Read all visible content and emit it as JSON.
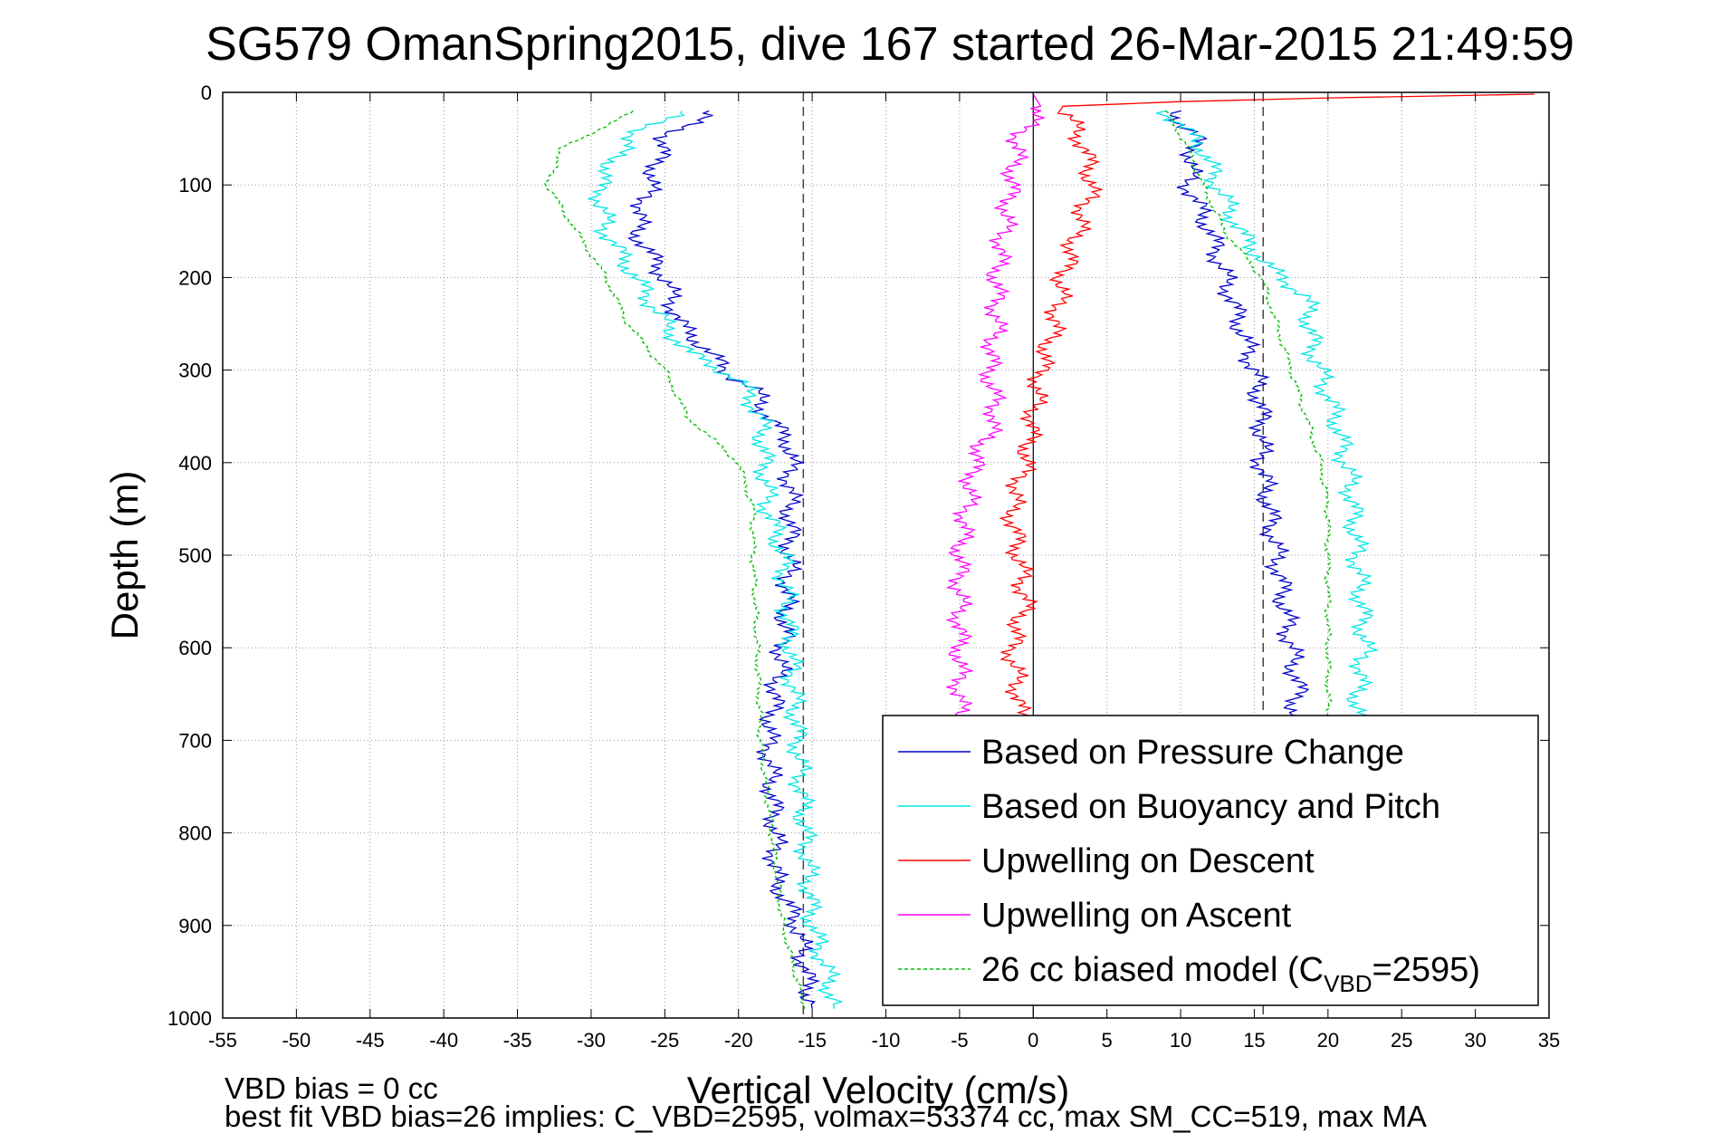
{
  "chart_data": {
    "type": "line",
    "title": "SG579 OmanSpring2015, dive 167 started 26-Mar-2015 21:49:59",
    "xlabel": "Vertical Velocity (cm/s)",
    "ylabel": "Depth (m)",
    "xlim": [
      -55,
      35
    ],
    "ylim": [
      0,
      1000
    ],
    "y_reversed": true,
    "grid": true,
    "x_ticks": [
      -55,
      -50,
      -45,
      -40,
      -35,
      -30,
      -25,
      -20,
      -15,
      -10,
      -5,
      0,
      5,
      10,
      15,
      20,
      25,
      30,
      35
    ],
    "y_ticks": [
      0,
      100,
      200,
      300,
      400,
      500,
      600,
      700,
      800,
      900,
      1000
    ],
    "x_tick_labels": [
      "-55",
      "-50",
      "-45",
      "-40",
      "-35",
      "-30",
      "-25",
      "-20",
      "-15",
      "-10",
      "-5",
      "0",
      "5",
      "10",
      "15",
      "20",
      "25",
      "30",
      "35"
    ],
    "y_tick_labels": [
      "0",
      "100",
      "200",
      "300",
      "400",
      "500",
      "600",
      "700",
      "800",
      "900",
      "1000"
    ],
    "reference_lines": {
      "vertical_dashed_x": [
        -15.6,
        15.6
      ],
      "vertical_solid_x": [
        0
      ]
    },
    "legend_placement": "bottom-right",
    "series": [
      {
        "name": "Based on Pressure Change",
        "color": "#0000cc",
        "style": "solid",
        "segments": [
          {
            "x": [
              -22,
              -25,
              -26,
              -27,
              -25,
              -24,
              -22,
              -21,
              -19,
              -18,
              -16.5,
              -16.5,
              -16.5,
              -17,
              -18,
              -17.5,
              -17.5,
              -16,
              -15
            ],
            "y": [
              20,
              50,
              100,
              150,
              200,
              250,
              280,
              300,
              320,
              350,
              380,
              450,
              500,
              600,
              700,
              800,
              850,
              900,
              990
            ]
          },
          {
            "x": [
              9.5,
              11,
              10.5,
              12,
              13,
              14,
              15,
              15.5,
              15.5,
              16,
              16.5,
              17,
              17.5,
              18,
              17.5
            ],
            "y": [
              20,
              50,
              100,
              150,
              200,
              250,
              300,
              350,
              400,
              450,
              500,
              550,
              600,
              650,
              680
            ]
          }
        ]
      },
      {
        "name": "Based on Buoyancy and Pitch",
        "color": "#00e5e5",
        "style": "solid",
        "segments": [
          {
            "x": [
              -24,
              -27.5,
              -29.5,
              -29,
              -27,
              -25,
              -23.5,
              -20,
              -18.5,
              -18,
              -17,
              -16.5,
              -16,
              -15.5,
              -15,
              -14,
              -13.5
            ],
            "y": [
              20,
              50,
              100,
              150,
              200,
              250,
              280,
              310,
              350,
              450,
              500,
              600,
              700,
              800,
              900,
              950,
              990
            ]
          },
          {
            "x": [
              9,
              11.5,
              12.5,
              14,
              16,
              18.5,
              19,
              20.5,
              21.5,
              22,
              22.5,
              22,
              22
            ],
            "y": [
              20,
              60,
              100,
              150,
              190,
              220,
              280,
              350,
              420,
              500,
              600,
              650,
              680
            ]
          }
        ]
      },
      {
        "name": "Upwelling on Descent",
        "color": "#ff0000",
        "style": "solid",
        "segments": [
          {
            "x": [
              34,
              20,
              10,
              2,
              2.5,
              3.5,
              4,
              3,
              2,
              1.5,
              0.5,
              0,
              -0.5,
              -1.5,
              -1,
              -0.5,
              -1.5,
              -1,
              -1
            ],
            "y": [
              2,
              6,
              10,
              15,
              30,
              60,
              100,
              150,
              200,
              250,
              300,
              350,
              400,
              450,
              500,
              550,
              600,
              650,
              680
            ]
          }
        ]
      },
      {
        "name": "Upwelling on Ascent",
        "color": "#ff00ff",
        "style": "solid",
        "segments": [
          {
            "x": [
              0,
              0.5,
              -1,
              -1.5,
              -2,
              -2.5,
              -2.5,
              -3,
              -2.5,
              -4,
              -4.5,
              -5,
              -5,
              -5,
              -5,
              -5
            ],
            "y": [
              2,
              15,
              50,
              100,
              150,
              200,
              250,
              300,
              350,
              400,
              450,
              500,
              550,
              600,
              650,
              680
            ]
          }
        ]
      },
      {
        "name": "26 cc biased model (C<sub>VBD</sub>=2595)",
        "color": "#00bb00",
        "style": "dashed",
        "segments": [
          {
            "x": [
              -27,
              -32,
              -33,
              -31,
              -29,
              -27.5,
              -25,
              -23.5,
              -20,
              -19,
              -19,
              -18.5,
              -17,
              -15.5
            ],
            "y": [
              20,
              60,
              100,
              150,
              200,
              250,
              300,
              350,
              400,
              450,
              500,
              700,
              900,
              990
            ]
          },
          {
            "x": [
              9,
              10.5,
              11.5,
              13,
              15.5,
              16.5,
              17.5,
              18.5,
              19.5,
              20,
              20,
              20,
              20
            ],
            "y": [
              20,
              60,
              100,
              150,
              200,
              250,
              300,
              350,
              400,
              450,
              500,
              600,
              680
            ]
          }
        ]
      }
    ],
    "legend_label_parts": [
      {
        "text": "Based on Pressure Change"
      },
      {
        "text": "Based on Buoyancy and Pitch"
      },
      {
        "text": "Upwelling on Descent"
      },
      {
        "text": "Upwelling on Ascent"
      },
      {
        "text": "26 cc biased model (C",
        "sub": "VBD",
        "after": "=2595)"
      }
    ]
  },
  "notes": {
    "line1": "VBD bias = 0 cc",
    "line2": "best fit VBD bias=26 implies: C_VBD=2595, volmax=53374 cc, max SM_CC=519, max MA"
  }
}
